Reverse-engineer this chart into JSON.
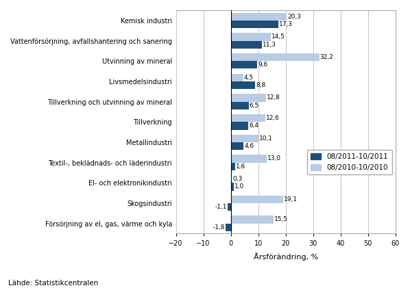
{
  "categories": [
    "Kemisk industri",
    "Vattenförsörjning, avfallshantering och sanering",
    "Utvinning av mineral",
    "Livsmedelsindustri",
    "Tillverkning och utvinning av mineral",
    "Tillverkning",
    "Metallindustri",
    "Textil-, beklädnads- och läderindustri",
    "El- och elektronikindustri",
    "Skogsindustri",
    "Försörjning av el, gas, värme och kyla"
  ],
  "values_2011": [
    17.3,
    11.3,
    9.6,
    8.8,
    6.5,
    6.4,
    4.6,
    1.6,
    1.0,
    -1.1,
    -1.8
  ],
  "values_2010": [
    20.3,
    14.5,
    32.2,
    4.5,
    12.8,
    12.6,
    10.1,
    13.0,
    0.3,
    19.1,
    15.5
  ],
  "color_2011": "#1F4E79",
  "color_2010": "#B8CCE4",
  "legend_2011": "08/2011-10/2011",
  "legend_2010": "08/2010-10/2010",
  "xlabel": "Årsförändring, %",
  "xlim": [
    -20,
    60
  ],
  "xticks": [
    -20,
    -10,
    0,
    10,
    20,
    30,
    40,
    50,
    60
  ],
  "source": "Lähde: Statistikcentralen",
  "background_color": "#FFFFFF",
  "bar_height": 0.38,
  "fontsize_labels": 7.0,
  "fontsize_values": 6.5,
  "fontsize_xlabel": 8.0,
  "fontsize_legend": 7.5,
  "fontsize_source": 7.5
}
